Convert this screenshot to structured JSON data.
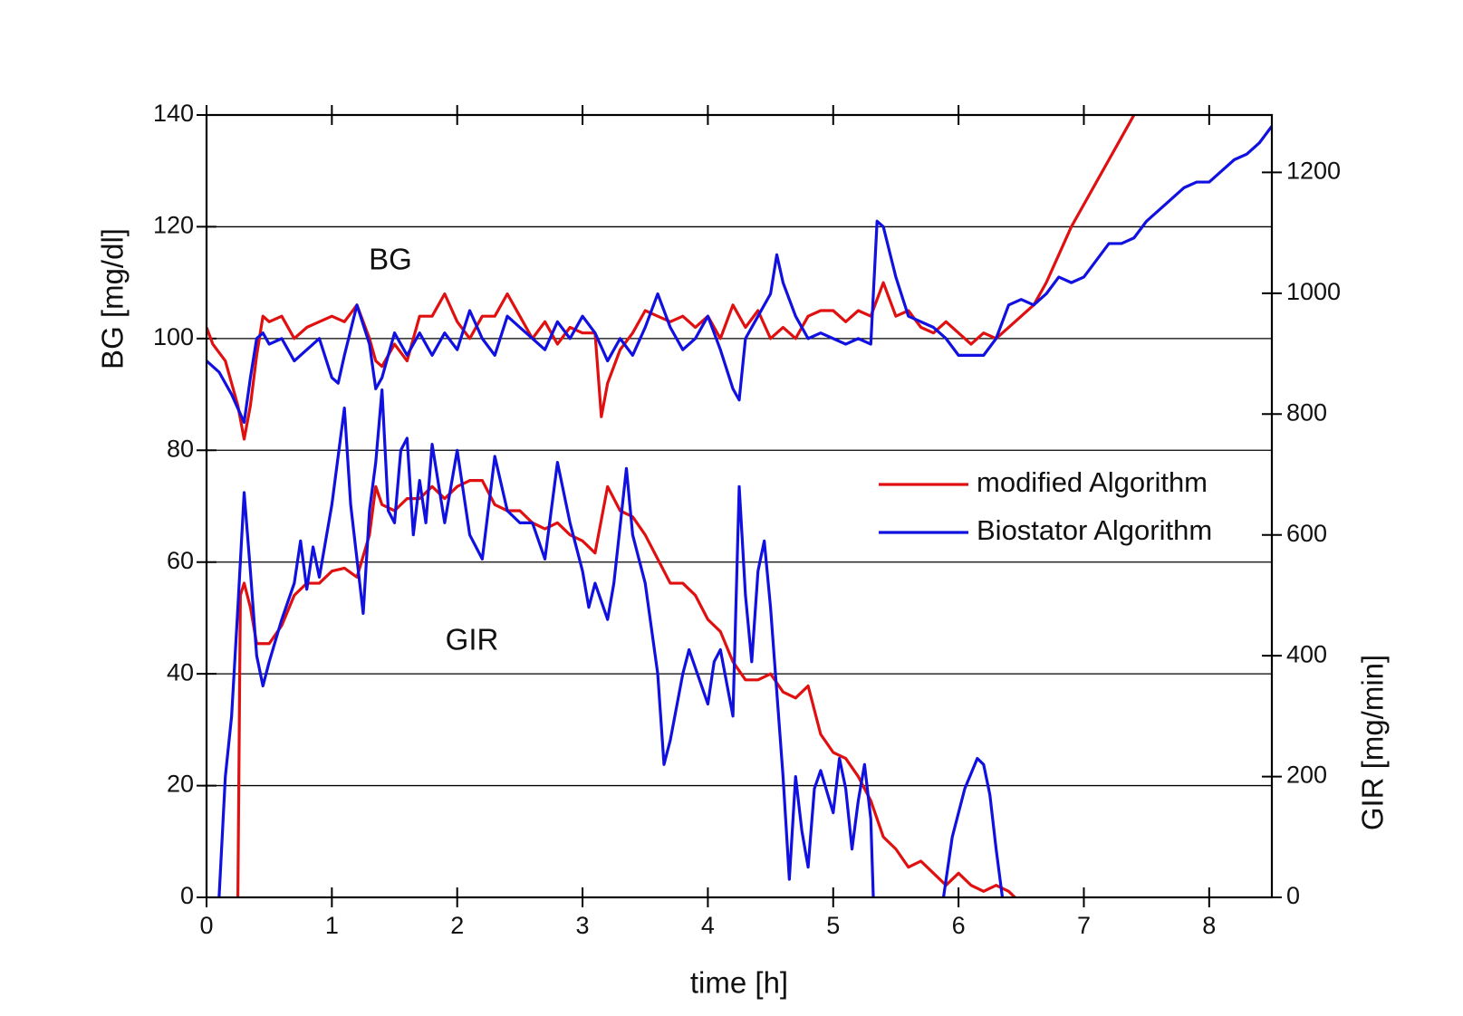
{
  "chart_data": {
    "type": "line",
    "x_label": "time [h]",
    "y_label": "BG [mg/dl]",
    "y2_label": "GIR [mg/min]",
    "annotations": [
      "BG",
      "GIR"
    ],
    "xlim": [
      0,
      8.5
    ],
    "xticks": [
      0,
      1,
      2,
      3,
      4,
      5,
      6,
      7,
      8
    ],
    "ylim": [
      0,
      140
    ],
    "yticks": [
      0,
      20,
      40,
      60,
      80,
      100,
      120,
      140
    ],
    "y2lim": [
      0,
      1295
    ],
    "y2ticks": [
      0,
      200,
      400,
      600,
      800,
      1000,
      1200
    ],
    "grid": true,
    "legend": "center right",
    "series": [
      {
        "name": "modified Algorithm",
        "color": "#e01010",
        "x": [
          0,
          0.05,
          0.15,
          0.25,
          0.3,
          0.35,
          0.4,
          0.45,
          0.5,
          0.6,
          0.7,
          0.8,
          0.9,
          1.0,
          1.1,
          1.2,
          1.3,
          1.35,
          1.4,
          1.5,
          1.6,
          1.7,
          1.8,
          1.9,
          2.0,
          2.1,
          2.2,
          2.3,
          2.4,
          2.5,
          2.6,
          2.7,
          2.8,
          2.9,
          3.0,
          3.1,
          3.15,
          3.2,
          3.3,
          3.4,
          3.5,
          3.6,
          3.7,
          3.8,
          3.9,
          4.0,
          4.1,
          4.2,
          4.3,
          4.4,
          4.5,
          4.6,
          4.7,
          4.8,
          4.9,
          5.0,
          5.1,
          5.2,
          5.3,
          5.4,
          5.5,
          5.6,
          5.7,
          5.8,
          5.9,
          6.0,
          6.1,
          6.2,
          6.3,
          6.4,
          6.5,
          6.6,
          6.7,
          6.8,
          6.9,
          7.0,
          7.1,
          7.2,
          7.3,
          7.4
        ],
        "values": [
          102,
          99,
          96,
          88,
          82,
          88,
          97,
          104,
          103,
          104,
          100,
          102,
          103,
          104,
          103,
          106,
          100,
          96,
          95,
          99,
          96,
          104,
          104,
          108,
          103,
          100,
          104,
          104,
          108,
          104,
          100,
          103,
          99,
          102,
          101,
          101,
          86,
          92,
          98,
          101,
          105,
          104,
          103,
          104,
          102,
          104,
          100,
          106,
          102,
          105,
          100,
          102,
          100,
          104,
          105,
          105,
          103,
          105,
          104,
          110,
          104,
          105,
          102,
          101,
          103,
          101,
          99,
          101,
          100,
          102,
          104,
          106,
          110,
          115,
          120,
          124,
          128,
          132,
          136,
          140
        ]
      },
      {
        "name": "Biostator Algorithm",
        "color": "#1010e0",
        "x": [
          0,
          0.1,
          0.2,
          0.3,
          0.35,
          0.4,
          0.45,
          0.5,
          0.6,
          0.7,
          0.8,
          0.9,
          1.0,
          1.05,
          1.1,
          1.2,
          1.3,
          1.35,
          1.4,
          1.5,
          1.6,
          1.7,
          1.8,
          1.9,
          2.0,
          2.1,
          2.2,
          2.3,
          2.4,
          2.5,
          2.6,
          2.7,
          2.8,
          2.9,
          3.0,
          3.1,
          3.2,
          3.3,
          3.4,
          3.5,
          3.6,
          3.7,
          3.8,
          3.9,
          4.0,
          4.1,
          4.2,
          4.25,
          4.3,
          4.4,
          4.5,
          4.55,
          4.6,
          4.7,
          4.8,
          4.9,
          5.0,
          5.1,
          5.2,
          5.3,
          5.35,
          5.4,
          5.5,
          5.6,
          5.7,
          5.8,
          5.9,
          6.0,
          6.1,
          6.2,
          6.3,
          6.4,
          6.5,
          6.6,
          6.7,
          6.8,
          6.9,
          7.0,
          7.1,
          7.2,
          7.3,
          7.4,
          7.5,
          7.6,
          7.7,
          7.8,
          7.9,
          8.0,
          8.1,
          8.2,
          8.3,
          8.4,
          8.5
        ],
        "values": [
          96,
          94,
          90,
          85,
          93,
          100,
          101,
          99,
          100,
          96,
          98,
          100,
          93,
          92,
          97,
          106,
          99,
          91,
          93,
          101,
          97,
          101,
          97,
          101,
          98,
          105,
          100,
          97,
          104,
          102,
          100,
          98,
          103,
          100,
          104,
          101,
          96,
          100,
          97,
          102,
          108,
          102,
          98,
          100,
          104,
          98,
          91,
          89,
          100,
          104,
          108,
          115,
          110,
          104,
          100,
          101,
          100,
          99,
          100,
          99,
          121,
          120,
          111,
          104,
          103,
          102,
          100,
          97,
          97,
          97,
          100,
          106,
          107,
          106,
          108,
          111,
          110,
          111,
          114,
          117,
          117,
          118,
          121,
          123,
          125,
          127,
          128,
          128,
          130,
          132,
          133,
          135,
          138
        ]
      },
      {
        "color": "#e01010",
        "axis": "y2",
        "x": [
          0.25,
          0.27,
          0.3,
          0.35,
          0.4,
          0.5,
          0.6,
          0.7,
          0.8,
          0.9,
          1.0,
          1.1,
          1.2,
          1.3,
          1.35,
          1.4,
          1.5,
          1.6,
          1.7,
          1.8,
          1.9,
          2.0,
          2.1,
          2.2,
          2.3,
          2.4,
          2.5,
          2.6,
          2.7,
          2.8,
          2.9,
          3.0,
          3.1,
          3.2,
          3.3,
          3.4,
          3.5,
          3.6,
          3.7,
          3.8,
          3.9,
          4.0,
          4.1,
          4.2,
          4.3,
          4.4,
          4.5,
          4.6,
          4.7,
          4.8,
          4.9,
          5.0,
          5.1,
          5.2,
          5.3,
          5.4,
          5.5,
          5.6,
          5.7,
          5.8,
          5.9,
          6.0,
          6.1,
          6.2,
          6.3,
          6.4,
          6.45
        ],
        "values": [
          0,
          500,
          520,
          480,
          420,
          420,
          450,
          500,
          520,
          520,
          540,
          545,
          530,
          600,
          680,
          650,
          640,
          660,
          660,
          680,
          660,
          680,
          690,
          690,
          650,
          640,
          640,
          620,
          610,
          620,
          600,
          590,
          570,
          680,
          640,
          630,
          600,
          560,
          520,
          520,
          500,
          460,
          440,
          390,
          360,
          360,
          370,
          340,
          330,
          350,
          270,
          240,
          230,
          200,
          160,
          100,
          80,
          50,
          60,
          40,
          20,
          40,
          20,
          10,
          20,
          10,
          0
        ]
      },
      {
        "color": "#1010e0",
        "axis": "y2",
        "x": [
          0.1,
          0.15,
          0.2,
          0.25,
          0.3,
          0.35,
          0.4,
          0.45,
          0.5,
          0.6,
          0.7,
          0.75,
          0.8,
          0.85,
          0.9,
          1.0,
          1.1,
          1.15,
          1.25,
          1.3,
          1.35,
          1.4,
          1.45,
          1.5,
          1.55,
          1.6,
          1.65,
          1.7,
          1.75,
          1.8,
          1.9,
          2.0,
          2.1,
          2.2,
          2.3,
          2.4,
          2.5,
          2.6,
          2.7,
          2.8,
          2.9,
          3.0,
          3.05,
          3.1,
          3.2,
          3.25,
          3.35,
          3.4,
          3.5,
          3.6,
          3.65,
          3.7,
          3.8,
          3.85,
          3.9,
          4.0,
          4.05,
          4.1,
          4.2,
          4.25,
          4.3,
          4.35,
          4.4,
          4.45,
          4.5,
          4.6,
          4.65,
          4.7,
          4.75,
          4.8,
          4.85,
          4.9,
          5.0,
          5.05,
          5.1,
          5.15,
          5.2,
          5.25,
          5.3,
          5.32,
          5.6,
          5.88,
          5.95,
          6.05,
          6.15,
          6.2,
          6.25,
          6.3,
          6.35
        ],
        "values": [
          0,
          200,
          300,
          480,
          670,
          540,
          400,
          350,
          390,
          460,
          520,
          590,
          510,
          580,
          530,
          650,
          810,
          650,
          470,
          640,
          720,
          840,
          640,
          620,
          740,
          760,
          600,
          690,
          620,
          750,
          620,
          740,
          600,
          560,
          730,
          640,
          620,
          620,
          560,
          720,
          620,
          540,
          480,
          520,
          460,
          520,
          710,
          600,
          520,
          370,
          220,
          260,
          370,
          410,
          380,
          320,
          390,
          410,
          300,
          680,
          500,
          390,
          540,
          590,
          480,
          200,
          30,
          200,
          110,
          50,
          180,
          210,
          140,
          230,
          180,
          80,
          160,
          220,
          130,
          0,
          null,
          0,
          100,
          180,
          230,
          220,
          170,
          80,
          0
        ]
      }
    ]
  }
}
